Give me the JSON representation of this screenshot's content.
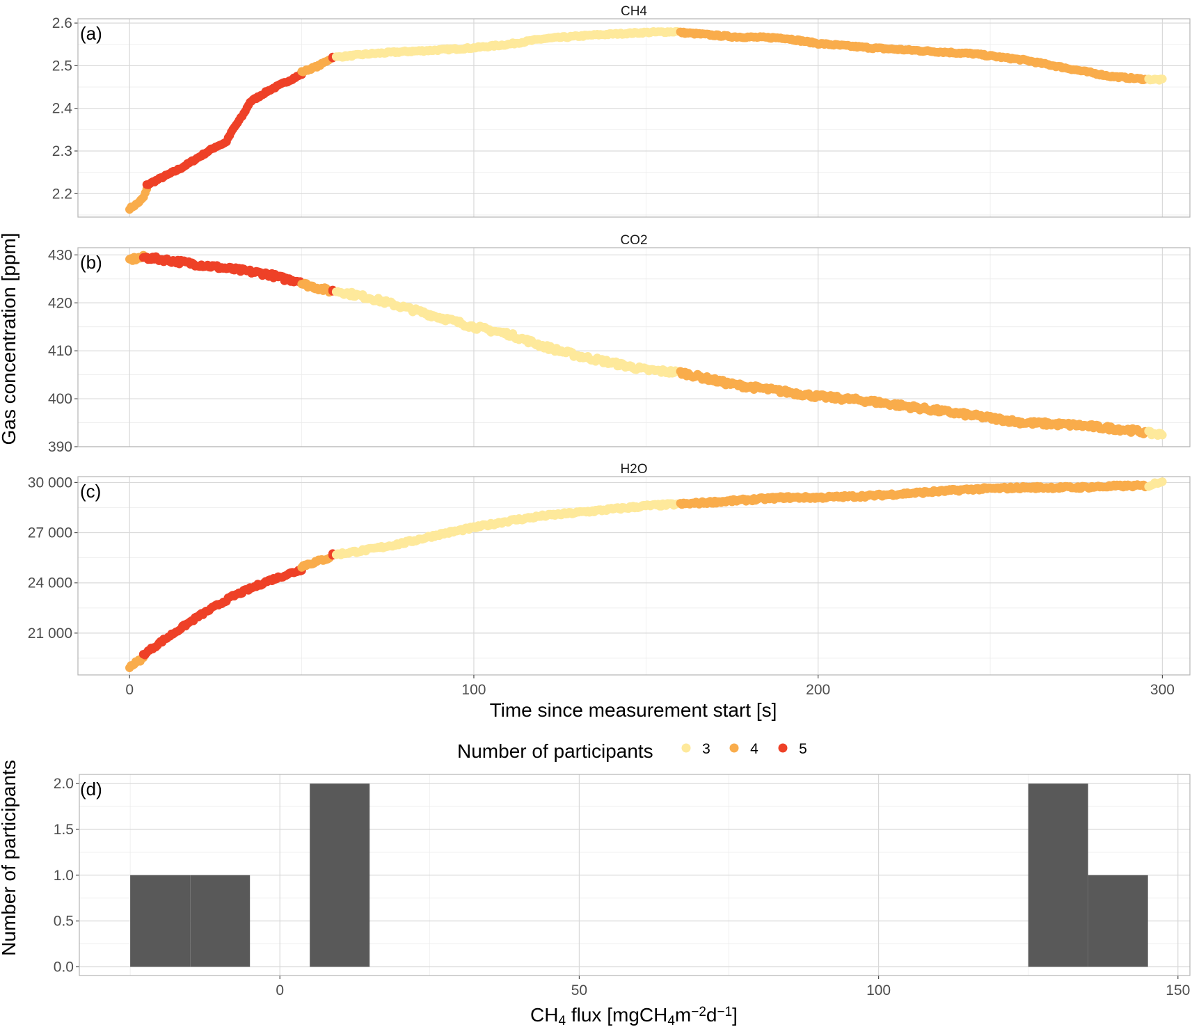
{
  "colors": {
    "p3": "#FEE99B",
    "p4": "#F9AC4B",
    "p5": "#EE4127",
    "bar": "#595959"
  },
  "time_axis": {
    "label": "Time since measurement start [s]",
    "ticks": [
      "0",
      "100",
      "200",
      "300"
    ],
    "xlim": [
      -15,
      308
    ]
  },
  "y_label": "Gas concentration [ppm]",
  "legend": {
    "title": "Number of participants",
    "entries": [
      {
        "label": "3",
        "color_key": "p3"
      },
      {
        "label": "4",
        "color_key": "p4"
      },
      {
        "label": "5",
        "color_key": "p5"
      }
    ]
  },
  "chart_data": [
    {
      "type": "scatter",
      "tag": "(a)",
      "title": "CH4",
      "ylim": [
        2.145,
        2.61
      ],
      "yticks": [
        {
          "v": 2.2,
          "label": "2.2"
        },
        {
          "v": 2.3,
          "label": "2.3"
        },
        {
          "v": 2.4,
          "label": "2.4"
        },
        {
          "v": 2.5,
          "label": "2.5"
        },
        {
          "v": 2.6,
          "label": "2.6"
        }
      ],
      "noise": 0.002,
      "segments": [
        {
          "participants": 4,
          "x": [
            0,
            5
          ],
          "knots": [
            [
              0,
              2.165
            ],
            [
              2,
              2.175
            ],
            [
              4,
              2.19
            ],
            [
              5,
              2.21
            ]
          ]
        },
        {
          "participants": 5,
          "x": [
            5,
            50
          ],
          "knots": [
            [
              5,
              2.22
            ],
            [
              10,
              2.24
            ],
            [
              15,
              2.26
            ],
            [
              20,
              2.285
            ],
            [
              25,
              2.31
            ],
            [
              28,
              2.32
            ],
            [
              30,
              2.35
            ],
            [
              33,
              2.385
            ],
            [
              35,
              2.415
            ],
            [
              40,
              2.44
            ],
            [
              45,
              2.46
            ],
            [
              50,
              2.48
            ]
          ]
        },
        {
          "participants": 4,
          "x": [
            50,
            58
          ],
          "knots": [
            [
              50,
              2.485
            ],
            [
              55,
              2.5
            ],
            [
              58,
              2.515
            ]
          ]
        },
        {
          "participants": 5,
          "x": [
            59,
            59
          ],
          "knots": [
            [
              59,
              2.52
            ]
          ]
        },
        {
          "participants": 3,
          "x": [
            60,
            159
          ],
          "knots": [
            [
              60,
              2.52
            ],
            [
              70,
              2.528
            ],
            [
              80,
              2.533
            ],
            [
              90,
              2.537
            ],
            [
              100,
              2.542
            ],
            [
              110,
              2.55
            ],
            [
              120,
              2.563
            ],
            [
              135,
              2.572
            ],
            [
              150,
              2.578
            ],
            [
              159,
              2.58
            ]
          ]
        },
        {
          "participants": 4,
          "x": [
            160,
            295
          ],
          "knots": [
            [
              160,
              2.578
            ],
            [
              175,
              2.568
            ],
            [
              190,
              2.565
            ],
            [
              200,
              2.552
            ],
            [
              215,
              2.542
            ],
            [
              230,
              2.535
            ],
            [
              245,
              2.528
            ],
            [
              260,
              2.513
            ],
            [
              275,
              2.49
            ],
            [
              285,
              2.475
            ],
            [
              295,
              2.468
            ]
          ]
        },
        {
          "participants": 3,
          "x": [
            296,
            300
          ],
          "knots": [
            [
              296,
              2.468
            ],
            [
              300,
              2.467
            ]
          ]
        }
      ]
    },
    {
      "type": "scatter",
      "tag": "(b)",
      "title": "CO2",
      "ylim": [
        390,
        431.5
      ],
      "yticks": [
        {
          "v": 390,
          "label": "390"
        },
        {
          "v": 400,
          "label": "400"
        },
        {
          "v": 410,
          "label": "410"
        },
        {
          "v": 420,
          "label": "420"
        },
        {
          "v": 430,
          "label": "430"
        }
      ],
      "noise": 0.45,
      "segments": [
        {
          "participants": 4,
          "x": [
            0,
            4
          ],
          "knots": [
            [
              0,
              429
            ],
            [
              4,
              429.5
            ]
          ]
        },
        {
          "participants": 5,
          "x": [
            4,
            50
          ],
          "knots": [
            [
              4,
              429.5
            ],
            [
              10,
              429
            ],
            [
              20,
              428
            ],
            [
              30,
              427
            ],
            [
              40,
              426
            ],
            [
              45,
              425
            ],
            [
              50,
              424.5
            ]
          ]
        },
        {
          "participants": 4,
          "x": [
            50,
            58
          ],
          "knots": [
            [
              50,
              424
            ],
            [
              58,
              422.5
            ]
          ]
        },
        {
          "participants": 5,
          "x": [
            59,
            59
          ],
          "knots": [
            [
              59,
              422.5
            ]
          ]
        },
        {
          "participants": 3,
          "x": [
            60,
            159
          ],
          "knots": [
            [
              60,
              422.5
            ],
            [
              70,
              421
            ],
            [
              80,
              419
            ],
            [
              90,
              417
            ],
            [
              100,
              415
            ],
            [
              110,
              413.5
            ],
            [
              120,
              411
            ],
            [
              130,
              409
            ],
            [
              140,
              407.5
            ],
            [
              150,
              406
            ],
            [
              159,
              405.5
            ]
          ]
        },
        {
          "participants": 4,
          "x": [
            160,
            295
          ],
          "knots": [
            [
              160,
              405.5
            ],
            [
              175,
              403
            ],
            [
              190,
              401.5
            ],
            [
              200,
              400.5
            ],
            [
              215,
              399.5
            ],
            [
              230,
              398
            ],
            [
              245,
              396.5
            ],
            [
              260,
              395
            ],
            [
              275,
              394.5
            ],
            [
              290,
              393.5
            ],
            [
              295,
              393
            ]
          ]
        },
        {
          "participants": 3,
          "x": [
            296,
            300
          ],
          "knots": [
            [
              296,
              392.8
            ],
            [
              300,
              392.5
            ]
          ]
        }
      ]
    },
    {
      "type": "scatter",
      "tag": "(c)",
      "title": "H2O",
      "ylim": [
        18500,
        30350
      ],
      "yticks": [
        {
          "v": 21000,
          "label": "21 000"
        },
        {
          "v": 24000,
          "label": "24 000"
        },
        {
          "v": 27000,
          "label": "27 000"
        },
        {
          "v": 30000,
          "label": "30 000"
        }
      ],
      "noise": 80,
      "segments": [
        {
          "participants": 4,
          "x": [
            0,
            4
          ],
          "knots": [
            [
              0,
              19000
            ],
            [
              4,
              19500
            ]
          ]
        },
        {
          "participants": 5,
          "x": [
            4,
            50
          ],
          "knots": [
            [
              4,
              19700
            ],
            [
              10,
              20600
            ],
            [
              20,
              22000
            ],
            [
              30,
              23200
            ],
            [
              40,
              24100
            ],
            [
              50,
              24800
            ]
          ]
        },
        {
          "participants": 4,
          "x": [
            50,
            58
          ],
          "knots": [
            [
              50,
              25000
            ],
            [
              58,
              25500
            ]
          ]
        },
        {
          "participants": 5,
          "x": [
            59,
            59
          ],
          "knots": [
            [
              59,
              25700
            ]
          ]
        },
        {
          "participants": 3,
          "x": [
            60,
            159
          ],
          "knots": [
            [
              60,
              25700
            ],
            [
              70,
              26000
            ],
            [
              80,
              26400
            ],
            [
              90,
              26900
            ],
            [
              100,
              27300
            ],
            [
              110,
              27700
            ],
            [
              120,
              28000
            ],
            [
              135,
              28300
            ],
            [
              150,
              28600
            ],
            [
              159,
              28700
            ]
          ]
        },
        {
          "participants": 4,
          "x": [
            160,
            295
          ],
          "knots": [
            [
              160,
              28700
            ],
            [
              175,
              28900
            ],
            [
              190,
              29100
            ],
            [
              200,
              29100
            ],
            [
              215,
              29200
            ],
            [
              230,
              29400
            ],
            [
              245,
              29600
            ],
            [
              260,
              29700
            ],
            [
              275,
              29700
            ],
            [
              290,
              29800
            ],
            [
              295,
              29800
            ]
          ]
        },
        {
          "participants": 3,
          "x": [
            296,
            300
          ],
          "knots": [
            [
              296,
              29800
            ],
            [
              300,
              30100
            ]
          ]
        }
      ]
    },
    {
      "type": "bar",
      "tag": "(d)",
      "xlabel_parts": [
        "CH",
        "4",
        " flux [mgCH",
        "4",
        "m",
        "−2",
        "d",
        "−1",
        "]"
      ],
      "ylabel": "Number of participants",
      "xlim": [
        -33.5,
        152
      ],
      "ylim": [
        -0.095,
        2.1
      ],
      "xticks": [
        {
          "v": 0,
          "label": "0"
        },
        {
          "v": 50,
          "label": "50"
        },
        {
          "v": 100,
          "label": "100"
        },
        {
          "v": 150,
          "label": "150"
        }
      ],
      "yticks": [
        {
          "v": 0,
          "label": "0.0"
        },
        {
          "v": 0.5,
          "label": "0.5"
        },
        {
          "v": 1,
          "label": "1.0"
        },
        {
          "v": 1.5,
          "label": "1.5"
        },
        {
          "v": 2,
          "label": "2.0"
        }
      ],
      "bins": [
        {
          "from": -25,
          "to": -15,
          "count": 1
        },
        {
          "from": -15,
          "to": -5,
          "count": 1
        },
        {
          "from": 5,
          "to": 15,
          "count": 2
        },
        {
          "from": 125,
          "to": 135,
          "count": 2
        },
        {
          "from": 135,
          "to": 145,
          "count": 1
        }
      ]
    }
  ]
}
